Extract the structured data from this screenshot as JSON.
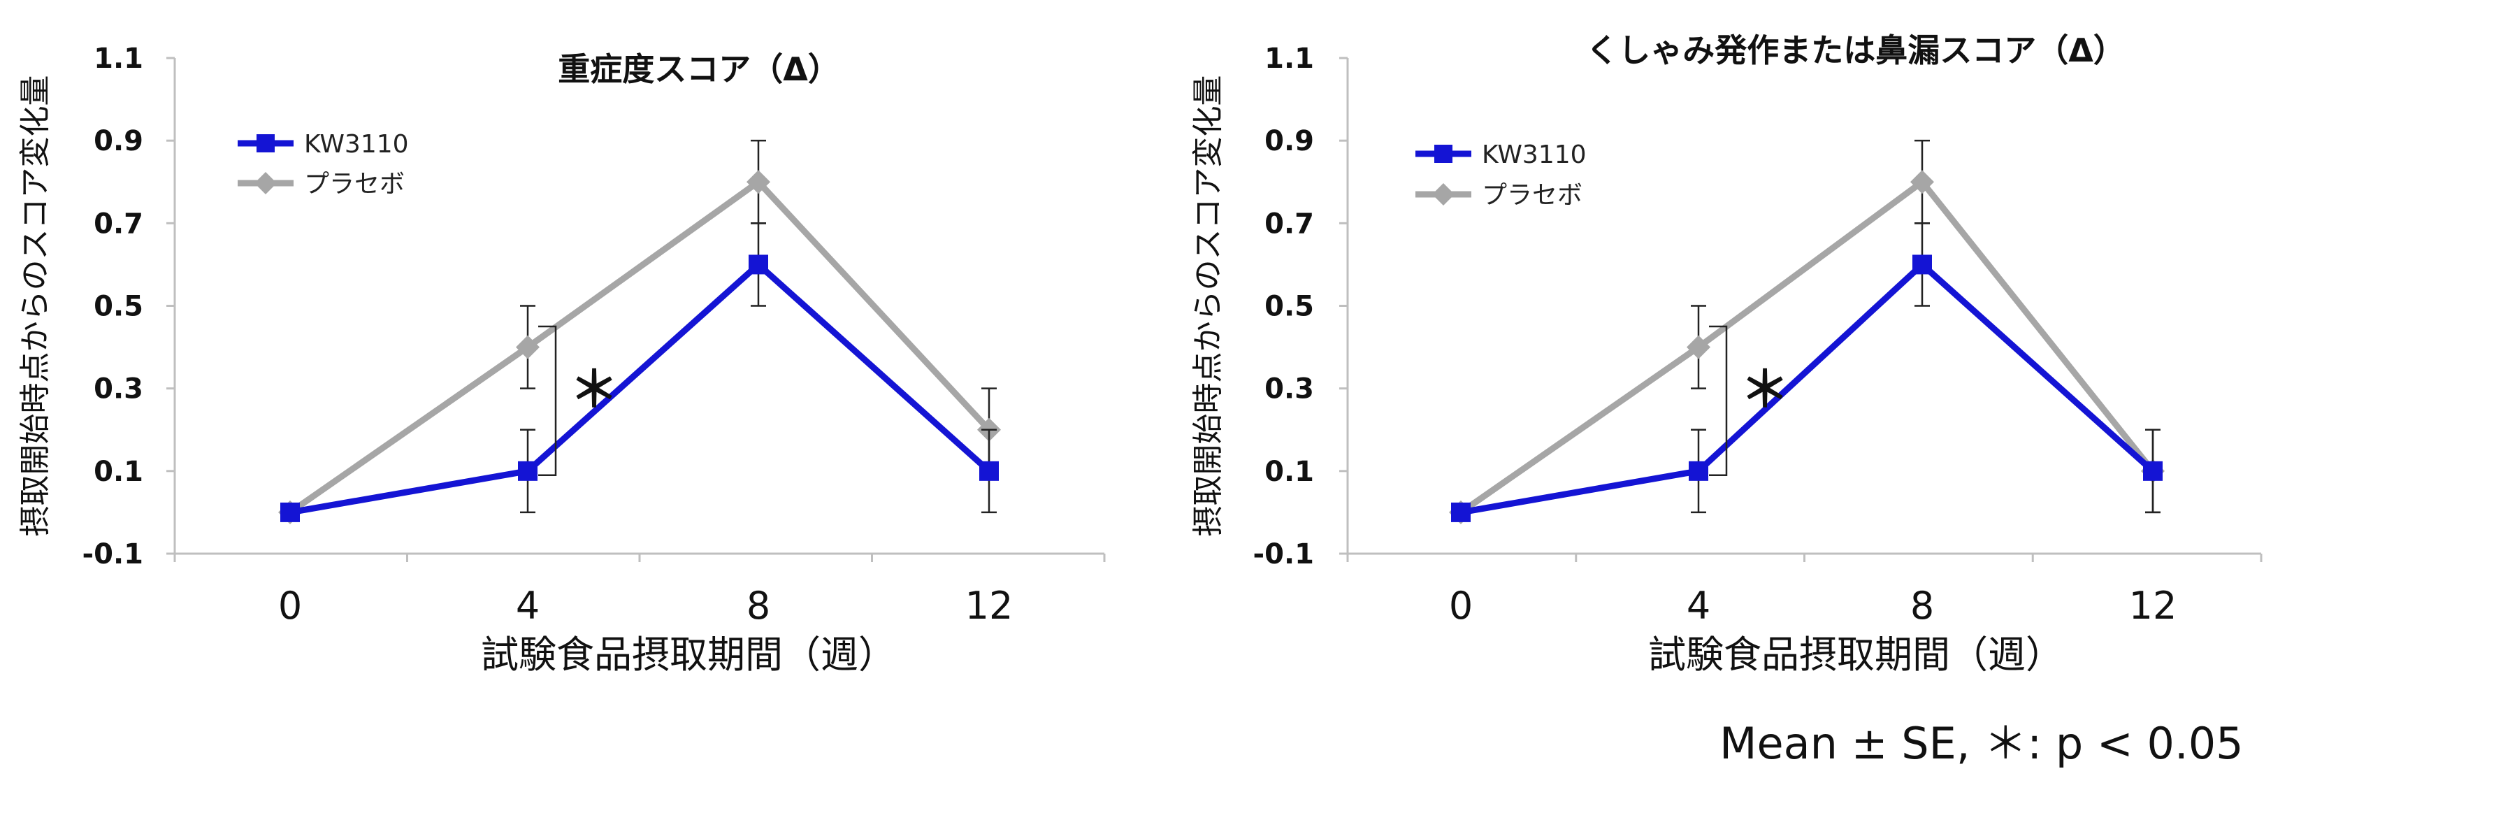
{
  "chart_data": [
    {
      "type": "line",
      "title": "重症度スコア（Δ）",
      "xlabel": "試験食品摂取期間（週）",
      "ylabel": "摂取開始時点からのスコア変化量",
      "x": [
        0,
        4,
        8,
        12
      ],
      "xticks": [
        "0",
        "4",
        "8",
        "12"
      ],
      "yticks": [
        "1.1",
        "0.9",
        "0.7",
        "0.5",
        "0.3",
        "0.1",
        "-0.1"
      ],
      "ylim": [
        -0.1,
        1.1
      ],
      "legend_position": "top-left",
      "series": [
        {
          "name": "KW3110",
          "values": [
            0.0,
            0.1,
            0.6,
            0.1
          ],
          "err": [
            0.0,
            0.1,
            0.1,
            0.1
          ],
          "color": "#1414d4",
          "marker": "square"
        },
        {
          "name": "プラセボ",
          "values": [
            0.0,
            0.4,
            0.8,
            0.2
          ],
          "err": [
            0.0,
            0.1,
            0.1,
            0.1
          ],
          "color": "#a6a6a6",
          "marker": "diamond"
        }
      ],
      "significance": {
        "x": 4,
        "label": "＊"
      }
    },
    {
      "type": "line",
      "title": "くしゃみ発作または鼻漏スコア（Δ）",
      "xlabel": "試験食品摂取期間（週）",
      "ylabel": "摂取開始時点からのスコア変化量",
      "x": [
        0,
        4,
        8,
        12
      ],
      "xticks": [
        "0",
        "4",
        "8",
        "12"
      ],
      "yticks": [
        "1.1",
        "0.9",
        "0.7",
        "0.5",
        "0.3",
        "0.1",
        "-0.1"
      ],
      "ylim": [
        -0.1,
        1.1
      ],
      "legend_position": "top-left",
      "series": [
        {
          "name": "KW3110",
          "values": [
            0.0,
            0.1,
            0.6,
            0.1
          ],
          "err": [
            0.0,
            0.1,
            0.1,
            0.1
          ],
          "color": "#1414d4",
          "marker": "square"
        },
        {
          "name": "プラセボ",
          "values": [
            0.0,
            0.4,
            0.8,
            0.1
          ],
          "err": [
            0.0,
            0.1,
            0.1,
            0.1
          ],
          "color": "#a6a6a6",
          "marker": "diamond"
        }
      ],
      "significance": {
        "x": 4,
        "label": "＊"
      }
    }
  ],
  "footnote": "Mean ± SE,  ＊: p < 0.05"
}
